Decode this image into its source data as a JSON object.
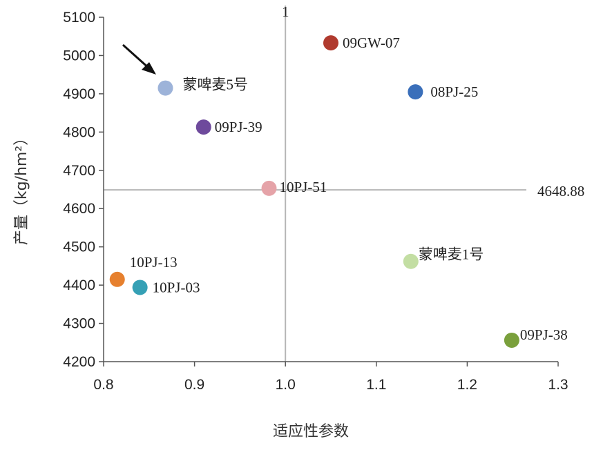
{
  "chart_data": {
    "type": "scatter",
    "title": "",
    "xlabel": "适应性参数",
    "ylabel": "产量（kg/hm²）",
    "xlim": [
      0.8,
      1.3
    ],
    "ylim": [
      4200,
      5100
    ],
    "x_ticks": [
      "0.8",
      "0.9",
      "1.0",
      "1.1",
      "1.2",
      "1.3"
    ],
    "y_ticks": [
      "4200",
      "4300",
      "4400",
      "4500",
      "4600",
      "4700",
      "4800",
      "4900",
      "5000",
      "5100"
    ],
    "grid": false,
    "reference_lines": {
      "vertical": {
        "x": 1.0,
        "label": "1"
      },
      "horizontal": {
        "y": 4648.88,
        "label": "4648.88"
      }
    },
    "points": [
      {
        "label": "09GW-07",
        "x": 1.05,
        "y": 5033,
        "color": "#b03a2e"
      },
      {
        "label": "08PJ-25",
        "x": 1.143,
        "y": 4905,
        "color": "#3a6fba"
      },
      {
        "label": "蒙啤麦5号",
        "x": 0.868,
        "y": 4915,
        "color": "#9db3d9",
        "highlighted": true
      },
      {
        "label": "09PJ-39",
        "x": 0.91,
        "y": 4813,
        "color": "#6e4a9c"
      },
      {
        "label": "10PJ-51",
        "x": 0.982,
        "y": 4653,
        "color": "#e5a3a8"
      },
      {
        "label": "蒙啤麦1号",
        "x": 1.138,
        "y": 4462,
        "color": "#c3dea3"
      },
      {
        "label": "10PJ-13",
        "x": 0.815,
        "y": 4415,
        "color": "#e6802e"
      },
      {
        "label": "10PJ-03",
        "x": 0.84,
        "y": 4394,
        "color": "#35a0b5"
      },
      {
        "label": "09PJ-38",
        "x": 1.249,
        "y": 4256,
        "color": "#7aa03c"
      }
    ]
  }
}
